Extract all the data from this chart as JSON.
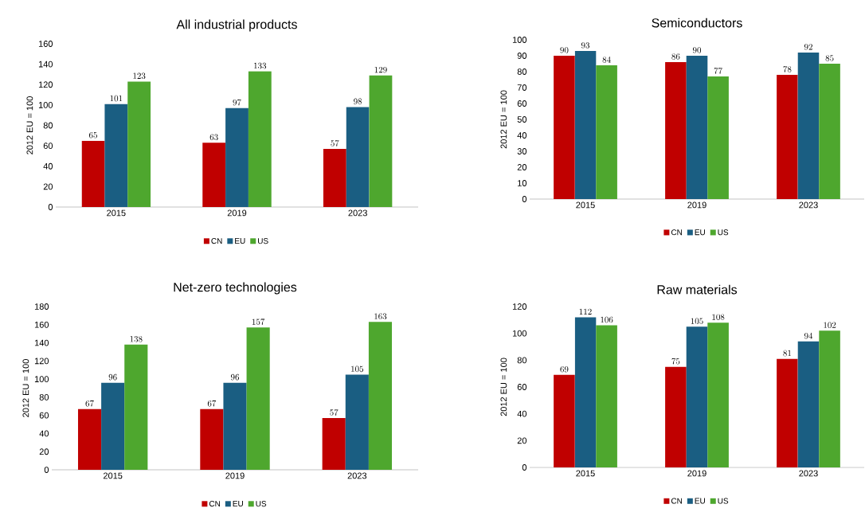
{
  "chart_data": [
    {
      "type": "bar",
      "title": "All industrial products",
      "ylabel": "2012 EU = 100",
      "categories": [
        "2015",
        "2019",
        "2023"
      ],
      "series": [
        {
          "name": "CN",
          "color": "#c00000",
          "values": [
            65,
            63,
            57
          ]
        },
        {
          "name": "EU",
          "color": "#1a5e82",
          "values": [
            101,
            97,
            98
          ]
        },
        {
          "name": "US",
          "color": "#4ea72e",
          "values": [
            123,
            133,
            129
          ]
        }
      ],
      "ylim": [
        0,
        160
      ],
      "yticks": [
        0,
        20,
        40,
        60,
        80,
        100,
        120,
        140,
        160
      ],
      "data_labels": true,
      "legend": "bottom"
    },
    {
      "type": "bar",
      "title": "Semiconductors",
      "ylabel": "2012 EU = 100",
      "categories": [
        "2015",
        "2019",
        "2023"
      ],
      "series": [
        {
          "name": "CN",
          "color": "#c00000",
          "values": [
            90,
            86,
            78
          ]
        },
        {
          "name": "EU",
          "color": "#1a5e82",
          "values": [
            93,
            90,
            92
          ]
        },
        {
          "name": "US",
          "color": "#4ea72e",
          "values": [
            84,
            77,
            85
          ]
        }
      ],
      "ylim": [
        0,
        100
      ],
      "yticks": [
        0,
        10,
        20,
        30,
        40,
        50,
        60,
        70,
        80,
        90,
        100
      ],
      "data_labels": true,
      "legend": "bottom"
    },
    {
      "type": "bar",
      "title": "Net-zero technologies",
      "ylabel": "2012 EU = 100",
      "categories": [
        "2015",
        "2019",
        "2023"
      ],
      "series": [
        {
          "name": "CN",
          "color": "#c00000",
          "values": [
            67,
            67,
            57
          ]
        },
        {
          "name": "EU",
          "color": "#1a5e82",
          "values": [
            96,
            96,
            105
          ]
        },
        {
          "name": "US",
          "color": "#4ea72e",
          "values": [
            138,
            157,
            163
          ]
        }
      ],
      "ylim": [
        0,
        180
      ],
      "yticks": [
        0,
        20,
        40,
        60,
        80,
        100,
        120,
        140,
        160,
        180
      ],
      "data_labels": true,
      "legend": "bottom"
    },
    {
      "type": "bar",
      "title": "Raw materials",
      "ylabel": "2012 EU = 100",
      "categories": [
        "2015",
        "2019",
        "2023"
      ],
      "series": [
        {
          "name": "CN",
          "color": "#c00000",
          "values": [
            69,
            75,
            81
          ]
        },
        {
          "name": "EU",
          "color": "#1a5e82",
          "values": [
            112,
            105,
            94
          ]
        },
        {
          "name": "US",
          "color": "#4ea72e",
          "values": [
            106,
            108,
            102
          ]
        }
      ],
      "ylim": [
        0,
        120
      ],
      "yticks": [
        0,
        20,
        40,
        60,
        80,
        100,
        120
      ],
      "data_labels": true,
      "legend": "bottom"
    }
  ]
}
